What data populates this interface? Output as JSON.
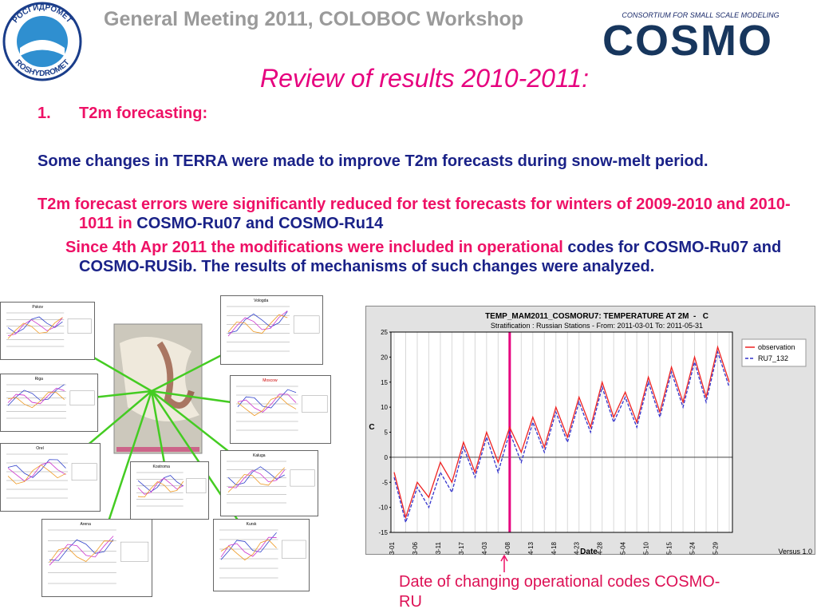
{
  "header": {
    "title": "General Meeting 2011, COLOBOC Workshop",
    "logo_left": {
      "top": "РОСГИДРОМЕТ",
      "bottom": "ROSHYDROMET"
    },
    "logo_right": {
      "tagline": "CONSORTIUM FOR SMALL SCALE MODELING",
      "name": "COSMO"
    }
  },
  "slide": {
    "title": "Review of results  2010-2011:",
    "item_number": "1.",
    "item_label": "T2m forecasting:",
    "paragraphs": [
      [
        "Some changes in TERRA were made to improve T2m forecasts during snow-melt  period."
      ],
      [
        "T2m forecast errors were significantly reduced for test forecasts for winters of 2009-2010 and 2010-1011 in ",
        "COSMO-Ru07 and COSMO-Ru14"
      ],
      [
        "Since 4th Apr 2011 the modifications were included  in operational",
        " codes for COSMO-Ru07 and COSMO-RUSib. The results of mechanisms of such  changes were  analyzed."
      ]
    ],
    "caption": "Date of changing operational codes COSMO-RU",
    "small_charts": [
      "Pskov",
      "Vologda",
      "Riga",
      "Moscow",
      "Orel",
      "Kostroma",
      "Kaluga",
      "Arena",
      "Kursk"
    ]
  },
  "chart_data": {
    "type": "line",
    "title": "TEMP_MAM2011_COSMORU7: TEMPERATURE AT 2M  -   C",
    "subtitle": "Stratification : Russian Stations - From: 2011-03-01 To: 2011-05-31",
    "y_label": "C",
    "x_label": "Date",
    "note": "Versus 1.0",
    "categories": [
      "03-01",
      null,
      "03-06",
      null,
      "03-11",
      null,
      "03-17",
      null,
      "04-03",
      null,
      "04-08",
      null,
      "04-13",
      null,
      "04-18",
      null,
      "04-23",
      null,
      "04-28",
      null,
      "05-04",
      null,
      "05-10",
      null,
      "05-15",
      null,
      "05-24",
      null,
      "05-29",
      null
    ],
    "series": [
      {
        "name": "observation",
        "color": "#ee2222",
        "values": [
          -3,
          -12,
          -5,
          -8,
          -1,
          -5,
          3,
          -3,
          5,
          -1,
          6,
          1,
          8,
          2,
          10,
          4,
          12,
          6,
          15,
          8,
          13,
          7,
          16,
          9,
          18,
          11,
          20,
          12,
          22,
          15
        ]
      },
      {
        "name": "RU7_132",
        "color": "#3333cc",
        "values": [
          -4,
          -13,
          -6,
          -10,
          -3,
          -7,
          2,
          -4,
          4,
          -3,
          5,
          -1,
          7,
          1,
          9,
          3,
          11,
          5,
          14,
          7,
          12,
          6,
          15,
          8,
          17,
          10,
          19,
          11,
          21,
          14
        ]
      }
    ],
    "ylim": [
      -15,
      25
    ],
    "yticks": [
      -15,
      -10,
      -5,
      0,
      5,
      10,
      15,
      20,
      25
    ],
    "grid": true,
    "legend": "top-right"
  }
}
